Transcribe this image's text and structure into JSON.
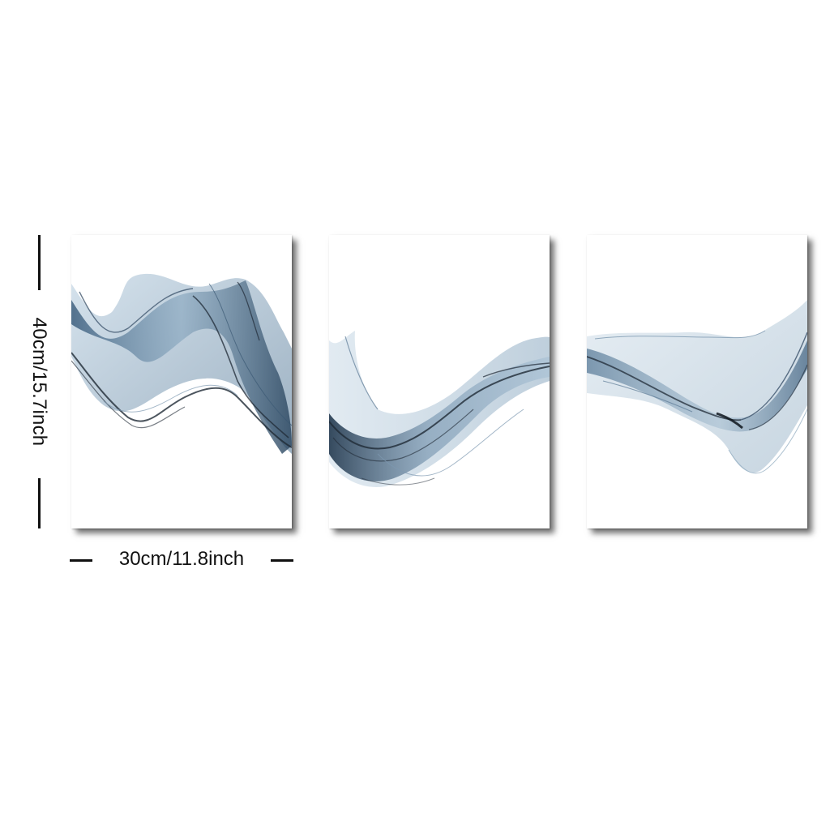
{
  "dimensions": {
    "height_label": "40cm/15.7inch",
    "width_label": "30cm/11.8inch"
  },
  "panels": [
    {
      "artwork": "abstract blue ink smoke wave"
    },
    {
      "artwork": "abstract blue ink smoke wave"
    },
    {
      "artwork": "abstract blue ink smoke wave"
    }
  ],
  "colors": {
    "ink_dark": "#1f2a36",
    "ink_blue": "#4d6f8e",
    "ink_light": "#a9c2d6",
    "background": "#ffffff"
  }
}
